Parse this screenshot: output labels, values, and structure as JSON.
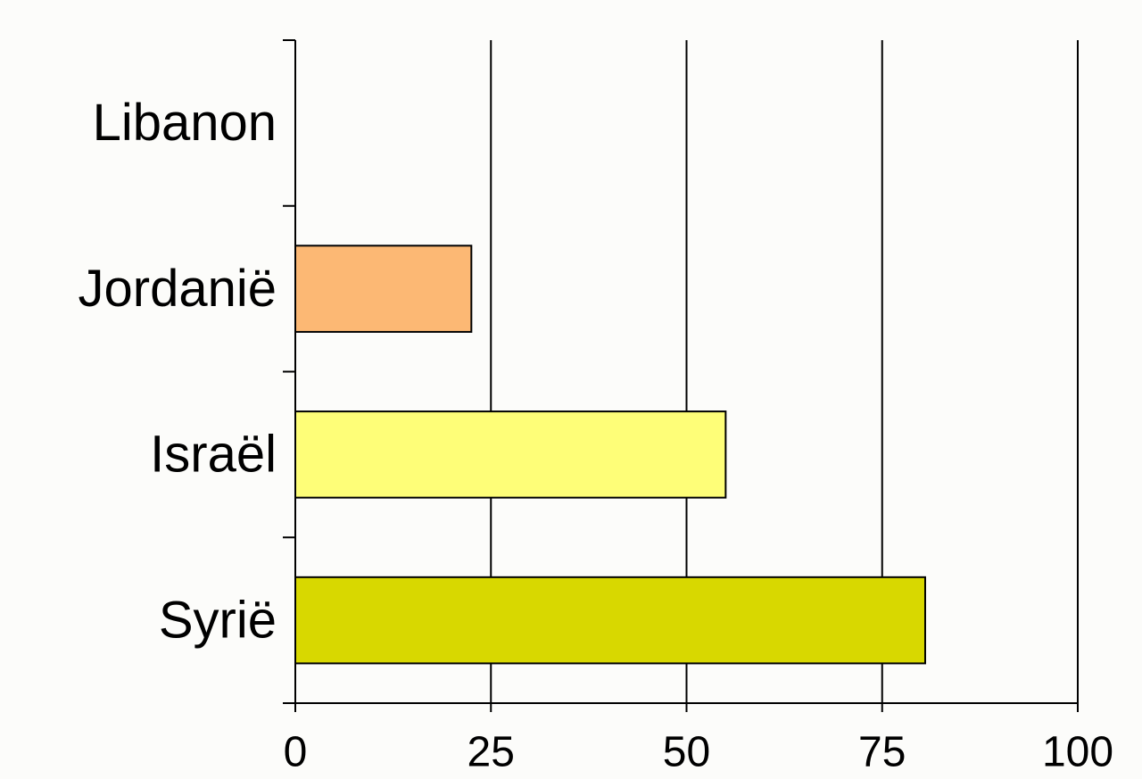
{
  "chart_data": {
    "type": "bar",
    "orientation": "horizontal",
    "categories": [
      "Libanon",
      "Jordanië",
      "Israël",
      "Syrië"
    ],
    "values": [
      0,
      22.5,
      55,
      80.5
    ],
    "colors": [
      "#ffffff",
      "#fcb874",
      "#fefe78",
      "#d8d800"
    ],
    "xlim": [
      0,
      100
    ],
    "xticks": [
      0,
      25,
      50,
      75,
      100
    ],
    "grid": true
  }
}
